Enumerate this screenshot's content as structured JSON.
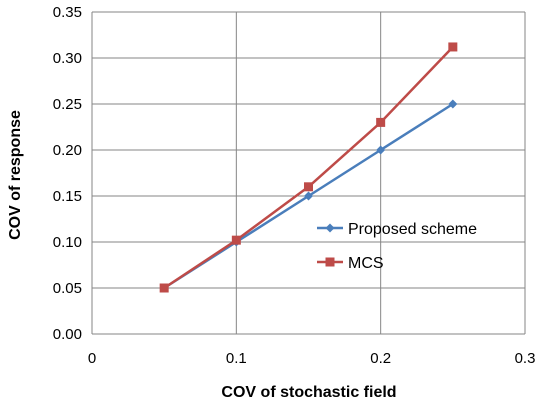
{
  "chart_data": {
    "type": "line",
    "xlabel": "COV of stochastic field",
    "ylabel": "COV of response",
    "xlim": [
      0,
      0.3
    ],
    "ylim": [
      0,
      0.35
    ],
    "x_ticks": [
      "0",
      "0.1",
      "0.2",
      "0.3"
    ],
    "y_ticks": [
      "0.00",
      "0.05",
      "0.10",
      "0.15",
      "0.20",
      "0.25",
      "0.30",
      "0.35"
    ],
    "grid": true,
    "legend_position": "right",
    "series": [
      {
        "name": "Proposed scheme",
        "color": "#4a7ebb",
        "marker": "diamond",
        "points": [
          [
            0.05,
            0.05
          ],
          [
            0.1,
            0.1
          ],
          [
            0.15,
            0.15
          ],
          [
            0.2,
            0.2
          ],
          [
            0.25,
            0.25
          ]
        ]
      },
      {
        "name": "MCS",
        "color": "#be4b48",
        "marker": "square",
        "points": [
          [
            0.05,
            0.05
          ],
          [
            0.1,
            0.102
          ],
          [
            0.15,
            0.16
          ],
          [
            0.2,
            0.23
          ],
          [
            0.25,
            0.312
          ]
        ]
      }
    ]
  }
}
